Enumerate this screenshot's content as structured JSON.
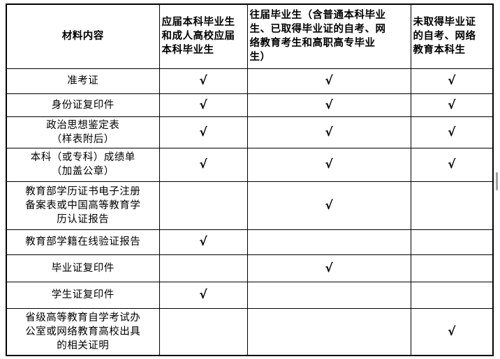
{
  "table": {
    "header": {
      "col1": "材料内容",
      "col2": "应届本科毕业生\n和成人高校应届\n本科毕业生",
      "col3": "往届毕业生（含普通本科毕业\n生、已取得毕业证的自考、网\n络教育考生和高职高专毕业\n生）",
      "col4": "未取得毕业证\n的自考、网络\n教育本科生"
    },
    "check_symbol": "√",
    "rows": [
      {
        "label": "准考证",
        "checks": [
          "√",
          "√",
          "√"
        ]
      },
      {
        "label": "身份证复印件",
        "checks": [
          "√",
          "√",
          "√"
        ]
      },
      {
        "label": "政治思想鉴定表\n（样表附后）",
        "checks": [
          "√",
          "√",
          "√"
        ]
      },
      {
        "label": "本科（或专科）成绩单\n（加盖公章）",
        "checks": [
          "√",
          "√",
          "√"
        ]
      },
      {
        "label": "教育部学历证书电子注册\n备案表或中国高等教育学\n历认证报告",
        "checks": [
          "",
          "√",
          ""
        ]
      },
      {
        "label": "教育部学籍在线验证报告",
        "checks": [
          "√",
          "",
          ""
        ]
      },
      {
        "label": "毕业证复印件",
        "checks": [
          "",
          "√",
          ""
        ]
      },
      {
        "label": "学生证复印件",
        "checks": [
          "√",
          "",
          ""
        ]
      },
      {
        "label": "省级高等教育自学考试办\n公室或网络教育高校出具\n的相关证明",
        "checks": [
          "",
          "",
          "√"
        ]
      }
    ],
    "colors": {
      "border": "#000000",
      "text": "#000000",
      "background": "#ffffff",
      "scrollbar_thumb": "#a0a0a0"
    }
  }
}
